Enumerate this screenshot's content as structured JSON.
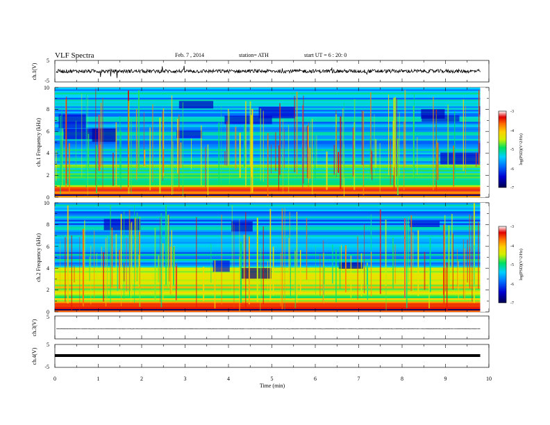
{
  "header": {
    "title": "VLF Spectra",
    "date": "Feb. 7 , 2014",
    "station": "station= ATH",
    "start": "start UT = 6 : 20: 0"
  },
  "colors": {
    "spectrogram_scale": [
      "#000050",
      "#0000c8",
      "#0060ff",
      "#00c8ff",
      "#00e060",
      "#c8f000",
      "#ffe000",
      "#ff8000",
      "#e00000",
      "#ffffff"
    ]
  },
  "chart_data": [
    {
      "type": "line",
      "panel": "ch1",
      "ylabel": "ch.1(V)",
      "ytick_labels": [
        "5",
        "-5"
      ],
      "ylim": [
        -5,
        5
      ],
      "series": [
        {
          "description": "noisy waveform around 0 V with occasional spikes",
          "approx_value": 0,
          "noise_amplitude": 1.2
        }
      ]
    },
    {
      "type": "heatmap",
      "panel": "ch1-spectrogram",
      "ylabel": "ch.1 Frequency (kHz)",
      "ylim": [
        0,
        10
      ],
      "yticks": [
        0,
        2,
        4,
        6,
        8,
        10
      ],
      "xlim": [
        0,
        10
      ],
      "data_end_min": 9.8,
      "colorbar": {
        "label": "log(PSD)(V^2/Hz)",
        "range": [
          -7,
          -3
        ],
        "ticks": [
          -3,
          -4,
          -5,
          -6,
          -7
        ]
      },
      "features": [
        {
          "name": "strong tone band",
          "freq_khz": 0.6,
          "log_psd": -3.5
        },
        {
          "name": "banded region",
          "freq_khz": [
            1,
            3
          ],
          "log_psd": -5.5
        },
        {
          "name": "background",
          "freq_khz": [
            3,
            10
          ],
          "log_psd": -6.0
        },
        {
          "name": "sferic streaks",
          "log_psd": -4.5
        }
      ]
    },
    {
      "type": "heatmap",
      "panel": "ch2-spectrogram",
      "ylabel": "ch.2 Frequency (kHz)",
      "ylim": [
        0,
        10
      ],
      "yticks": [
        0,
        2,
        4,
        6,
        8,
        10
      ],
      "xlim": [
        0,
        10
      ],
      "data_end_min": 9.8,
      "colorbar": {
        "label": "log(PSD)(V^2/Hz)",
        "range": [
          -7,
          -3
        ],
        "ticks": [
          -3,
          -4,
          -5,
          -6,
          -7
        ]
      },
      "features": [
        {
          "name": "strong tone band",
          "freq_khz": 0.6,
          "log_psd": -3.8
        },
        {
          "name": "tone",
          "freq_khz": 2.2,
          "log_psd": -4.3
        },
        {
          "name": "banded region",
          "freq_khz": [
            0.5,
            4
          ],
          "log_psd": -5.0
        },
        {
          "name": "background",
          "freq_khz": [
            4,
            10
          ],
          "log_psd": -6.1
        }
      ]
    },
    {
      "type": "line",
      "panel": "ch3",
      "ylabel": "ch.3(V)",
      "ytick_labels": [
        "5",
        "-5"
      ],
      "ylim": [
        -5,
        5
      ],
      "series": [
        {
          "description": "nearly flat line",
          "approx_value": 0,
          "noise_amplitude": 0.05
        }
      ]
    },
    {
      "type": "line",
      "panel": "ch4",
      "ylabel": "ch.4(V)",
      "ytick_labels": [
        "5",
        "-5"
      ],
      "ylim": [
        -5,
        5
      ],
      "series": [
        {
          "description": "thick flat band",
          "approx_value": 0,
          "noise_amplitude": 0.4
        }
      ]
    }
  ],
  "xaxis": {
    "label": "Time (min)",
    "ticks": [
      "0",
      "1",
      "2",
      "3",
      "4",
      "5",
      "6",
      "7",
      "8",
      "9",
      "10"
    ],
    "xlim": [
      0,
      10
    ]
  },
  "ytick_labels_freq": [
    "10",
    "8",
    "6",
    "4",
    "2",
    "0"
  ],
  "colorbar_tick_labels": [
    "-3",
    "-4",
    "-5",
    "-6",
    "-7"
  ]
}
